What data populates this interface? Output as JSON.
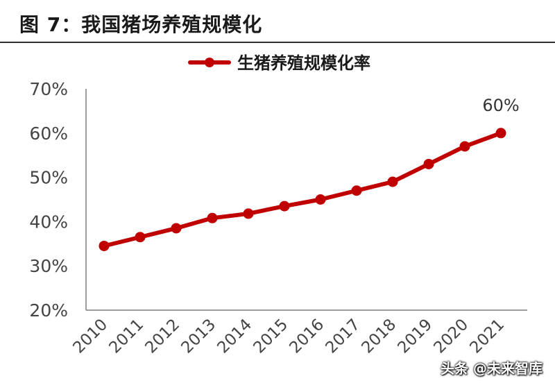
{
  "title": "图 7：我国猪场养殖规模化",
  "watermark": "头条 @未来智库",
  "colors": {
    "series": "#c00000",
    "axis": "#7f7f7f",
    "text": "#444444"
  },
  "chart_data": {
    "type": "line",
    "title": "",
    "xlabel": "",
    "ylabel": "",
    "x": [
      "2010",
      "2011",
      "2012",
      "2013",
      "2014",
      "2015",
      "2016",
      "2017",
      "2018",
      "2019",
      "2020",
      "2021"
    ],
    "series": [
      {
        "name": "生猪养殖规模化率",
        "values": [
          34.5,
          36.5,
          38.5,
          40.8,
          41.8,
          43.5,
          45.0,
          47.0,
          49.0,
          53.0,
          57.0,
          60.0
        ]
      }
    ],
    "ylim": [
      20,
      70
    ],
    "yticks": [
      "20%",
      "30%",
      "40%",
      "50%",
      "60%",
      "70%"
    ],
    "data_labels": [
      {
        "index": 11,
        "text": "60%"
      }
    ],
    "legend_position": "top-center",
    "grid": false,
    "x_tick_rotation": -45
  }
}
